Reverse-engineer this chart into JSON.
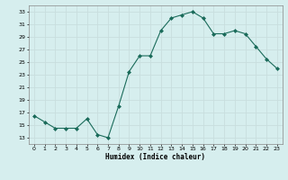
{
  "x": [
    0,
    1,
    2,
    3,
    4,
    5,
    6,
    7,
    8,
    9,
    10,
    11,
    12,
    13,
    14,
    15,
    16,
    17,
    18,
    19,
    20,
    21,
    22,
    23
  ],
  "y": [
    16.5,
    15.5,
    14.5,
    14.5,
    14.5,
    16,
    13.5,
    13,
    18,
    23.5,
    26,
    26,
    30,
    32,
    32.5,
    33,
    32,
    29.5,
    29.5,
    30,
    29.5,
    27.5,
    25.5,
    24
  ],
  "line_color": "#1a6b5a",
  "marker_color": "#1a6b5a",
  "bg_color": "#d6eeee",
  "grid_color": "#c8dede",
  "xlabel": "Humidex (Indice chaleur)",
  "xlim": [
    -0.5,
    23.5
  ],
  "ylim": [
    12,
    34
  ],
  "yticks": [
    13,
    15,
    17,
    19,
    21,
    23,
    25,
    27,
    29,
    31,
    33
  ],
  "xticks": [
    0,
    1,
    2,
    3,
    4,
    5,
    6,
    7,
    8,
    9,
    10,
    11,
    12,
    13,
    14,
    15,
    16,
    17,
    18,
    19,
    20,
    21,
    22,
    23
  ]
}
